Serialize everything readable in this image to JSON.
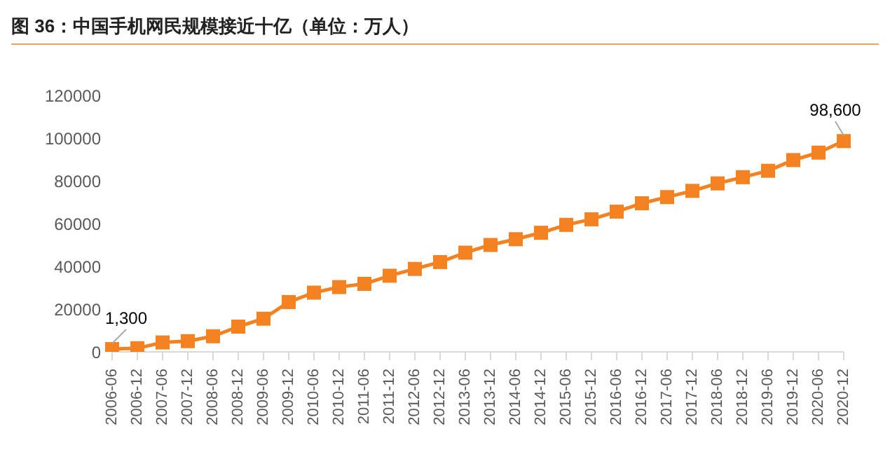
{
  "chart_data": {
    "type": "line",
    "title": "图 36：中国手机网民规模接近十亿（单位：万人）",
    "categories": [
      "2006-06",
      "2006-12",
      "2007-06",
      "2007-12",
      "2008-06",
      "2008-12",
      "2009-06",
      "2009-12",
      "2010-06",
      "2010-12",
      "2011-06",
      "2011-12",
      "2012-06",
      "2012-12",
      "2013-06",
      "2013-12",
      "2014-06",
      "2014-12",
      "2015-06",
      "2015-12",
      "2016-06",
      "2016-12",
      "2017-06",
      "2017-12",
      "2018-06",
      "2018-12",
      "2019-06",
      "2019-12",
      "2020-06",
      "2020-12"
    ],
    "series": [
      {
        "color": "#f58220",
        "values": [
          1300,
          1700,
          4400,
          5000,
          7300,
          11800,
          15500,
          23300,
          27700,
          30300,
          31800,
          35600,
          38800,
          42000,
          46400,
          50000,
          52700,
          55700,
          59400,
          62000,
          65600,
          69500,
          72400,
          75300,
          78800,
          81700,
          84700,
          89700,
          93200,
          98600
        ],
        "value_labels": [
          "1,300",
          null,
          null,
          null,
          null,
          null,
          null,
          null,
          null,
          null,
          null,
          null,
          null,
          null,
          null,
          null,
          null,
          null,
          null,
          null,
          null,
          null,
          null,
          null,
          null,
          null,
          null,
          null,
          null,
          "98,600"
        ]
      }
    ],
    "ylim": [
      0,
      120000
    ],
    "yticks": [
      0,
      20000,
      40000,
      60000,
      80000,
      100000,
      120000
    ],
    "grid": false,
    "legend": false,
    "marker": "square",
    "line_style": "solid"
  }
}
